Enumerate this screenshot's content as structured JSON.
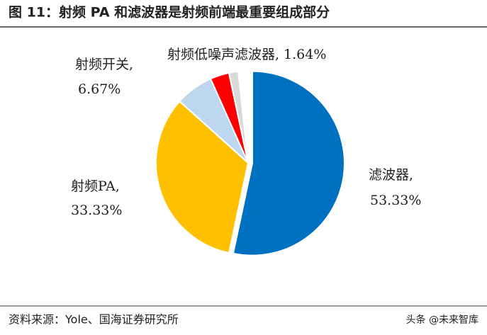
{
  "chart_data": {
    "type": "pie",
    "title": "图 11：射频 PA 和滤波器是射频前端最重要组成部分",
    "categories": [
      "滤波器,",
      "射频PA,",
      "射频开关,",
      null,
      "射频低噪声滤波器,"
    ],
    "values": [
      53.33,
      33.33,
      6.67,
      3.33,
      1.64
    ],
    "value_labels": [
      "53.33%",
      "33.33%",
      "6.67%",
      null,
      "1.64%"
    ],
    "colors": [
      "#0070c0",
      "#ffc000",
      "#bdd7ee",
      "#ff0000",
      "#d9d9d9"
    ]
  },
  "source": "资料来源：Yole、国海证券研究所",
  "watermark": "头条 @未来智库"
}
